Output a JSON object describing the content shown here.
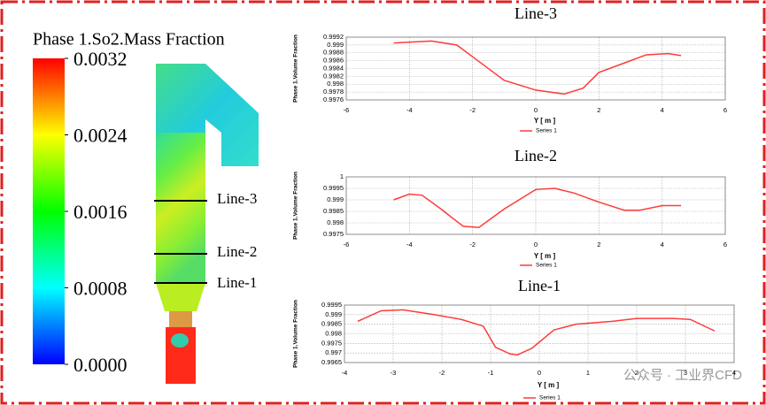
{
  "chart_data": [
    {
      "type": "colorbar",
      "title": "Phase 1.So2.Mass Fraction",
      "ylim": [
        0,
        0.0032
      ],
      "yticks": [
        {
          "value": 0,
          "label": "0.0000"
        },
        0.0008,
        0.0016,
        0.0024,
        0.0032
      ],
      "colors": [
        "#0000ff",
        "#00ffff",
        "#00ff00",
        "#ffff00",
        "#ff0000"
      ]
    },
    {
      "type": "line",
      "title": "Line-3",
      "xlabel": "Y [ m ]",
      "ylabel": "Phase 1.Volume Fraction",
      "xlim": [
        -6,
        6
      ],
      "xticks": [
        -6,
        -4,
        -2,
        0,
        2,
        4,
        6
      ],
      "ylim": [
        0.9976,
        0.9992
      ],
      "yticks": [
        0.9976,
        0.9978,
        0.998,
        0.9982,
        0.9984,
        0.9986,
        0.9988,
        0.999,
        0.9992
      ],
      "grid": true,
      "series": [
        {
          "name": "Series 1",
          "color": "#ff3b3b",
          "x": [
            -4.5,
            -3.3,
            -2.5,
            -2,
            -1,
            0,
            0.9,
            1.5,
            2,
            3,
            3.5,
            4.2,
            4.6
          ],
          "values": [
            0.99905,
            0.9991,
            0.999,
            0.9987,
            0.9981,
            0.99785,
            0.99775,
            0.9979,
            0.9983,
            0.9986,
            0.99875,
            0.99878,
            0.99873
          ]
        }
      ]
    },
    {
      "type": "line",
      "title": "Line-2",
      "xlabel": "Y [ m ]",
      "ylabel": "Phase 1.Volume Fraction",
      "xlim": [
        -6,
        6
      ],
      "xticks": [
        -6,
        -4,
        -2,
        0,
        2,
        4,
        6
      ],
      "ylim": [
        0.9975,
        1
      ],
      "yticks": [
        0.9975,
        0.998,
        0.9985,
        0.999,
        0.9995,
        1
      ],
      "grid": true,
      "series": [
        {
          "name": "Series 1",
          "color": "#ff3b3b",
          "x": [
            -4.5,
            -4,
            -3.6,
            -3,
            -2.3,
            -1.8,
            -1,
            0,
            0.6,
            1.2,
            2,
            2.8,
            3.3,
            4,
            4.6
          ],
          "values": [
            0.999,
            0.99925,
            0.9992,
            0.9986,
            0.99785,
            0.9978,
            0.9986,
            0.99945,
            0.9995,
            0.9993,
            0.9989,
            0.99855,
            0.99855,
            0.99875,
            0.99875
          ]
        }
      ]
    },
    {
      "type": "line",
      "title": "Line-1",
      "xlabel": "Y [ m ]",
      "ylabel": "Phase 1.Volume Fraction",
      "xlim": [
        -4,
        4
      ],
      "xticks": [
        -4,
        -3,
        -2,
        -1,
        0,
        1,
        2,
        3,
        4
      ],
      "ylim": [
        0.9965,
        0.9995
      ],
      "yticks": [
        0.9965,
        0.997,
        0.9975,
        0.998,
        0.9985,
        0.999,
        0.9995
      ],
      "grid": true,
      "series": [
        {
          "name": "Series 1",
          "color": "#ff3b3b",
          "x": [
            -3.73,
            -3.25,
            -2.8,
            -2.15,
            -1.6,
            -1.15,
            -0.9,
            -0.6,
            -0.45,
            -0.15,
            0.3,
            0.75,
            1.5,
            2,
            2.75,
            3.1,
            3.6
          ],
          "values": [
            0.99865,
            0.9992,
            0.99925,
            0.999,
            0.99875,
            0.9984,
            0.9973,
            0.99695,
            0.9969,
            0.99725,
            0.9982,
            0.9985,
            0.99865,
            0.9988,
            0.9988,
            0.99875,
            0.99815
          ]
        }
      ]
    }
  ],
  "geometry": {
    "line_labels": [
      "Line-3",
      "Line-2",
      "Line-1"
    ]
  },
  "watermark": "公众号 · 工业界CFD"
}
